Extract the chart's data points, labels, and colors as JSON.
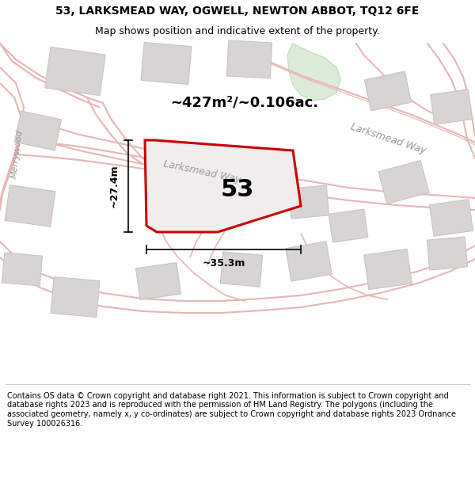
{
  "title": "53, LARKSMEAD WAY, OGWELL, NEWTON ABBOT, TQ12 6FE",
  "subtitle": "Map shows position and indicative extent of the property.",
  "footer": "Contains OS data © Crown copyright and database right 2021. This information is subject to Crown copyright and database rights 2023 and is reproduced with the permission of HM Land Registry. The polygons (including the associated geometry, namely x, y co-ordinates) are subject to Crown copyright and database rights 2023 Ordnance Survey 100026316.",
  "bg_color": "#ffffff",
  "map_bg": "#f7f3f3",
  "road_fill": "#f2dada",
  "road_line": "#e8b4b4",
  "building_fill": "#d8d4d4",
  "building_edge": "#c8c4c4",
  "plot_fill": "#f0eded",
  "plot_edge": "#cc0000",
  "green_fill": "#d4e8d0",
  "green_edge": "#b8d4b4",
  "area_text": "~427m²/~0.106ac.",
  "plot_number": "53",
  "dim_v": "~27.4m",
  "dim_h": "~35.3m",
  "label_larksmead1": "Larksmead Way",
  "label_larksmead2": "Larksmead Way",
  "label_merrywood": "Merrywood",
  "title_fontsize": 10,
  "subtitle_fontsize": 9,
  "footer_fontsize": 7
}
